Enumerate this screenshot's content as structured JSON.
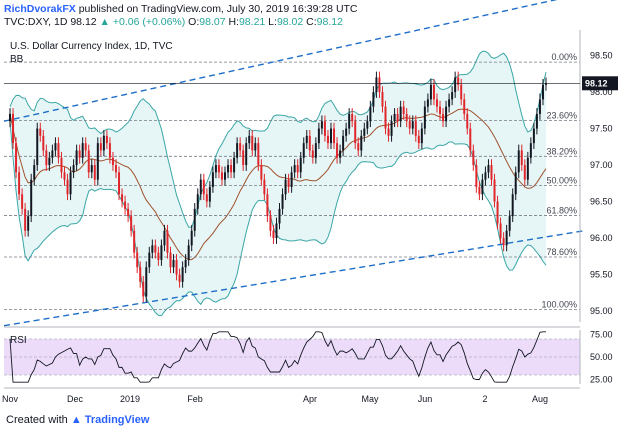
{
  "header": {
    "author": "RichDvorakFX",
    "published": "published on TradingView.com, July 30, 2019 16:39:28 UTC",
    "symbol": "TVC:DXY, 1D",
    "last": "98.12",
    "change": "▲ +0.06 (+0.06%)",
    "o_label": "O:",
    "o_value": "98.07",
    "h_label": "H:",
    "h_value": "98.21",
    "l_label": "L:",
    "l_value": "98.02",
    "c_label": "C:",
    "c_value": "98.12"
  },
  "overlay": {
    "title": "U.S. Dollar Currency Index, 1D, TVC",
    "indicator": "BB",
    "rsi_label": "RSI"
  },
  "footer": {
    "created_with": "Created with",
    "brand": "TradingView"
  },
  "colors": {
    "up": "#26a69a",
    "down": "#ef5350",
    "candle_up": "#131722",
    "candle_down": "#e0252b",
    "bb": "#3aa6a6",
    "bb_fill": "#e6f6f6",
    "basis": "#a0522d",
    "trend": "#1e6fc8",
    "fib": "#787b86",
    "rsi_line": "#131722",
    "rsi_band": "#ecdcfa",
    "price_label_bg": "#131722"
  },
  "chart_data": {
    "type": "candlestick",
    "title": "U.S. Dollar Currency Index, 1D, TVC",
    "x_tick_labels": [
      "Nov",
      "Dec",
      "2019",
      "Feb",
      "Apr",
      "May",
      "Jun",
      "2",
      "Aug"
    ],
    "y_tick_labels": [
      "98.50",
      "98.00",
      "97.50",
      "97.00",
      "96.50",
      "96.00",
      "95.50",
      "95.00"
    ],
    "ylim": [
      94.85,
      98.85
    ],
    "current_price": "98.12",
    "fib_levels": [
      {
        "label": "0.00%",
        "value": 98.41
      },
      {
        "label": "23.60%",
        "value": 97.61
      },
      {
        "label": "38.20%",
        "value": 97.12
      },
      {
        "label": "50.00%",
        "value": 96.72
      },
      {
        "label": "61.80%",
        "value": 96.31
      },
      {
        "label": "78.60%",
        "value": 95.74
      },
      {
        "label": "100.00%",
        "value": 95.02
      }
    ],
    "trendlines": [
      {
        "from": [
          0,
          97.6
        ],
        "to": [
          290,
          99.35
        ]
      },
      {
        "from": [
          0,
          94.8
        ],
        "to": [
          290,
          96.1
        ]
      }
    ],
    "closes": [
      97.7,
      97.3,
      96.9,
      96.6,
      96.4,
      96.1,
      96.3,
      96.8,
      97.0,
      97.5,
      97.4,
      97.2,
      97.0,
      97.1,
      97.2,
      97.3,
      97.1,
      96.9,
      96.8,
      96.6,
      96.9,
      97.0,
      97.2,
      97.1,
      97.3,
      97.2,
      96.9,
      97.0,
      96.8,
      97.3,
      97.2,
      97.4,
      97.3,
      97.1,
      97.0,
      96.9,
      96.6,
      96.5,
      96.4,
      96.3,
      96.1,
      95.8,
      95.6,
      95.4,
      95.2,
      95.6,
      95.8,
      95.9,
      95.8,
      95.7,
      95.9,
      96.1,
      95.8,
      95.6,
      95.7,
      95.5,
      95.4,
      95.6,
      95.7,
      95.9,
      96.1,
      96.4,
      96.6,
      96.8,
      96.6,
      96.5,
      96.7,
      96.9,
      97.0,
      96.9,
      96.8,
      96.9,
      97.0,
      96.9,
      97.1,
      97.3,
      97.2,
      97.0,
      97.3,
      97.4,
      97.2,
      97.3,
      97.0,
      96.8,
      96.6,
      96.3,
      96.1,
      96.0,
      96.2,
      96.4,
      96.6,
      96.8,
      96.7,
      96.9,
      97.0,
      96.9,
      97.1,
      97.3,
      97.4,
      97.2,
      97.1,
      97.3,
      97.5,
      97.6,
      97.4,
      97.3,
      97.5,
      97.3,
      97.1,
      97.2,
      97.4,
      97.5,
      97.7,
      97.6,
      97.3,
      97.2,
      97.4,
      97.5,
      97.6,
      97.8,
      98.0,
      98.2,
      98.0,
      97.8,
      97.5,
      97.4,
      97.6,
      97.7,
      97.6,
      97.8,
      97.7,
      97.6,
      97.5,
      97.6,
      97.4,
      97.3,
      97.5,
      97.8,
      97.9,
      98.1,
      97.9,
      97.8,
      97.7,
      97.6,
      97.8,
      97.9,
      98.0,
      98.2,
      98.1,
      97.9,
      97.7,
      97.5,
      97.2,
      97.0,
      96.7,
      96.6,
      96.8,
      96.9,
      97.0,
      96.8,
      96.5,
      96.2,
      96.0,
      95.9,
      96.1,
      96.3,
      96.6,
      96.9,
      97.2,
      97.0,
      96.8,
      97.1,
      97.3,
      97.5,
      97.7,
      97.9,
      98.1,
      98.12
    ],
    "rsi": {
      "label": "RSI",
      "y_tick_labels": [
        "75.00",
        "50.00",
        "25.00"
      ],
      "ylim": [
        20,
        80
      ],
      "band": [
        30,
        70
      ]
    }
  }
}
